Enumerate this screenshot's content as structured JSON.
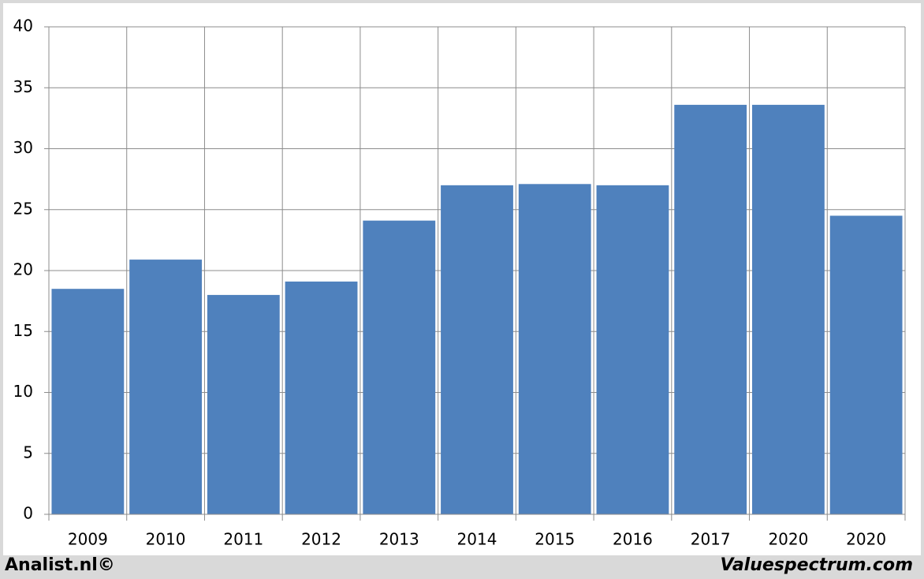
{
  "chart_data": {
    "type": "bar",
    "categories": [
      "2009",
      "2010",
      "2011",
      "2012",
      "2013",
      "2014",
      "2015",
      "2016",
      "2017",
      "2020",
      "2020"
    ],
    "values": [
      18.5,
      20.9,
      18.0,
      19.1,
      24.1,
      27.0,
      27.1,
      27.0,
      33.6,
      33.6,
      24.5
    ],
    "color": "#4f81bd",
    "ylim": [
      0,
      40
    ],
    "yticks": [
      0,
      5,
      10,
      15,
      20,
      25,
      30,
      35,
      40
    ],
    "grid": true
  },
  "footer": {
    "left": "Analist.nl©",
    "right": "Valuespectrum.com"
  }
}
